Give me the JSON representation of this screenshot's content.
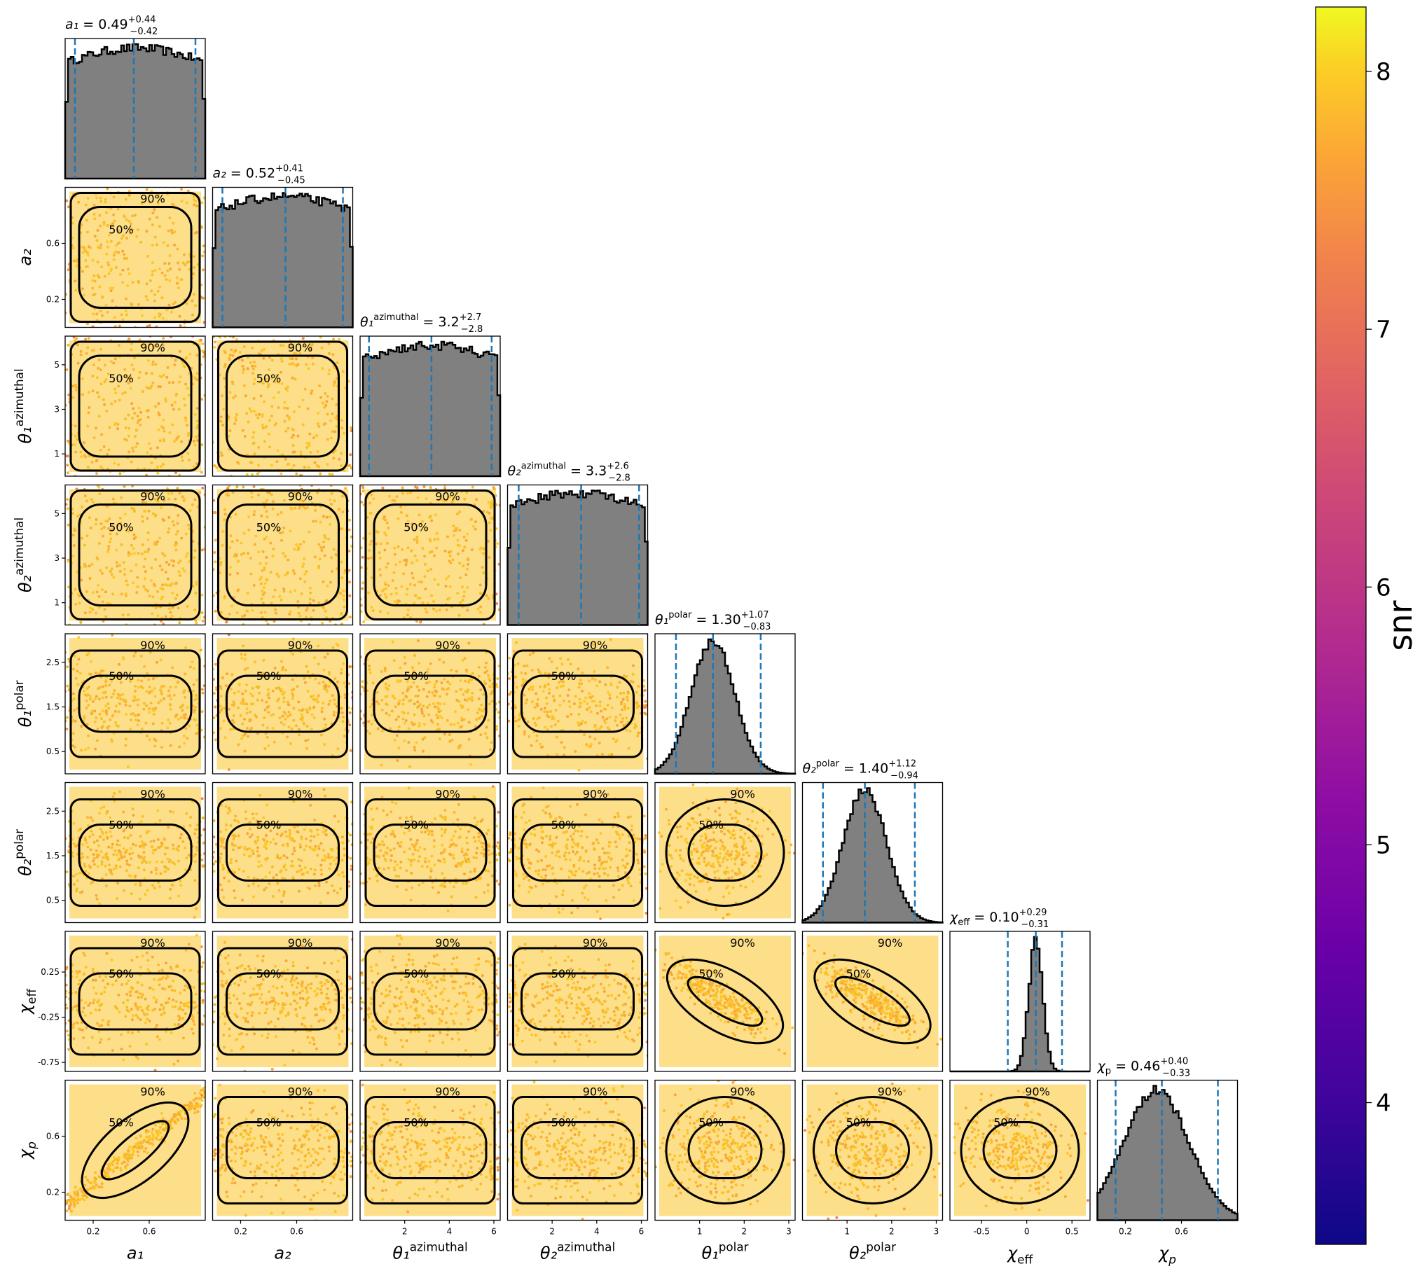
{
  "chart_data": {
    "type": "scatter",
    "subtype": "corner-plot",
    "parameters": [
      {
        "key": "a1",
        "label": "a₁",
        "range": [
          0,
          1
        ],
        "ticks": [
          0.2,
          0.6
        ],
        "summary": "a₁ = 0.49",
        "median": 0.49,
        "plus": "+0.44",
        "minus": "−0.42",
        "hist_shape": "uniform"
      },
      {
        "key": "a2",
        "label": "a₂",
        "range": [
          0,
          1
        ],
        "ticks": [
          0.2,
          0.6
        ],
        "summary": "a₂ = 0.52",
        "median": 0.52,
        "plus": "+0.41",
        "minus": "−0.45",
        "hist_shape": "uniform"
      },
      {
        "key": "t1az",
        "label": "θ₁",
        "label_sup": "azimuthal",
        "range": [
          0,
          6.283
        ],
        "ticks": [
          1,
          3,
          5
        ],
        "xticks": [
          2,
          4,
          6
        ],
        "summary": "= 3.2",
        "median": 3.2,
        "plus": "+2.7",
        "minus": "−2.8",
        "hist_shape": "uniform"
      },
      {
        "key": "t2az",
        "label": "θ₂",
        "label_sup": "azimuthal",
        "range": [
          0,
          6.283
        ],
        "ticks": [
          1,
          3,
          5
        ],
        "xticks": [
          2,
          4,
          6
        ],
        "summary": "= 3.3",
        "median": 3.3,
        "plus": "+2.6",
        "minus": "−2.8",
        "hist_shape": "uniform"
      },
      {
        "key": "t1po",
        "label": "θ₁",
        "label_sup": "polar",
        "range": [
          0,
          3.1416
        ],
        "ticks": [
          0.5,
          1.5,
          2.5
        ],
        "xticks": [
          1,
          2,
          3
        ],
        "summary": "= 1.30",
        "median": 1.3,
        "plus": "+1.07",
        "minus": "−0.83",
        "hist_shape": "peaked"
      },
      {
        "key": "t2po",
        "label": "θ₂",
        "label_sup": "polar",
        "range": [
          0,
          3.1416
        ],
        "ticks": [
          0.5,
          1.5,
          2.5
        ],
        "xticks": [
          1,
          2,
          3
        ],
        "summary": "= 1.40",
        "median": 1.4,
        "plus": "+1.12",
        "minus": "−0.94",
        "hist_shape": "peaked"
      },
      {
        "key": "chieff",
        "label": "χ",
        "label_sub": "eff",
        "range": [
          -0.85,
          0.7
        ],
        "ticks": [
          -0.75,
          -0.25,
          0.25
        ],
        "xticks": [
          -0.5,
          0.0,
          0.5
        ],
        "summary": "= 0.10",
        "median": 0.1,
        "plus": "+0.29",
        "minus": "−0.31",
        "hist_shape": "narrow"
      },
      {
        "key": "chip",
        "label": "χ",
        "label_sub": "p",
        "range": [
          0,
          1
        ],
        "ticks": [
          0.2,
          0.6
        ],
        "xticks": [
          0.2,
          0.6
        ],
        "summary": "= 0.46",
        "median": 0.46,
        "plus": "+0.40",
        "minus": "−0.33",
        "hist_shape": "broad"
      }
    ],
    "contour_levels": [
      "50%",
      "90%"
    ],
    "colorbar": {
      "label": "snr",
      "range": [
        3.45,
        8.25
      ],
      "ticks": [
        "4",
        "5",
        "6",
        "7",
        "8"
      ],
      "tick_values": [
        4,
        5,
        6,
        7,
        8
      ],
      "colormap": "plasma"
    },
    "histogram_color": "#808080",
    "quantile_line_color": "#1f77b4",
    "contour_color": "#000000"
  }
}
